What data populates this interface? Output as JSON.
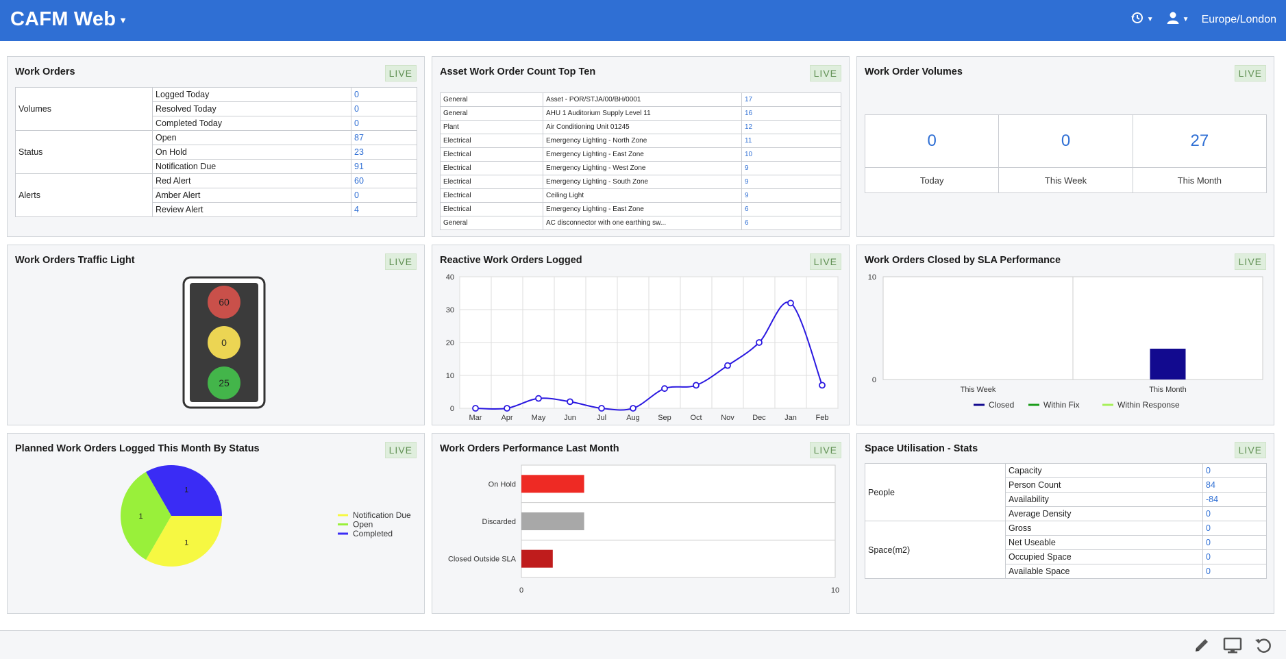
{
  "app": {
    "title": "CAFM Web",
    "timezone": "Europe/London"
  },
  "live_label": "LIVE",
  "work_orders": {
    "title": "Work Orders",
    "groups": [
      {
        "name": "Volumes",
        "rows": [
          {
            "label": "Logged Today",
            "value": "0"
          },
          {
            "label": "Resolved Today",
            "value": "0"
          },
          {
            "label": "Completed Today",
            "value": "0"
          }
        ]
      },
      {
        "name": "Status",
        "rows": [
          {
            "label": "Open",
            "value": "87"
          },
          {
            "label": "On Hold",
            "value": "23"
          },
          {
            "label": "Notification Due",
            "value": "91"
          }
        ]
      },
      {
        "name": "Alerts",
        "rows": [
          {
            "label": "Red Alert",
            "value": "60"
          },
          {
            "label": "Amber Alert",
            "value": "0"
          },
          {
            "label": "Review Alert",
            "value": "4"
          }
        ]
      }
    ]
  },
  "asset_top_ten": {
    "title": "Asset Work Order Count Top Ten",
    "rows": [
      [
        "General",
        "Asset - POR/STJA/00/BH/0001",
        "17"
      ],
      [
        "General",
        "AHU 1 Auditorium Supply Level 11",
        "16"
      ],
      [
        "Plant",
        "Air Conditioning Unit 01245",
        "12"
      ],
      [
        "Electrical",
        "Emergency Lighting - North Zone",
        "11"
      ],
      [
        "Electrical",
        "Emergency Lighting - East Zone",
        "10"
      ],
      [
        "Electrical",
        "Emergency Lighting - West Zone",
        "9"
      ],
      [
        "Electrical",
        "Emergency Lighting - South Zone",
        "9"
      ],
      [
        "Electrical",
        "Ceiling Light",
        "9"
      ],
      [
        "Electrical",
        "Emergency Lighting - East Zone",
        "6"
      ],
      [
        "General",
        "AC disconnector with one earthing sw...",
        "6"
      ]
    ]
  },
  "volumes": {
    "title": "Work Order Volumes",
    "cells": [
      {
        "value": "0",
        "label": "Today"
      },
      {
        "value": "0",
        "label": "This Week"
      },
      {
        "value": "27",
        "label": "This Month"
      }
    ]
  },
  "traffic_light": {
    "title": "Work Orders Traffic Light",
    "red": "60",
    "amber": "0",
    "green": "25",
    "colors": {
      "red": "#c9504a",
      "amber": "#ecd553",
      "green": "#43b54a"
    }
  },
  "reactive": {
    "title": "Reactive Work Orders Logged",
    "color": "#2a18e0",
    "chart_data": {
      "type": "line",
      "x": [
        "Mar",
        "Apr",
        "May",
        "Jun",
        "Jul",
        "Aug",
        "Sep",
        "Oct",
        "Nov",
        "Dec",
        "Jan",
        "Feb"
      ],
      "values": [
        0,
        0,
        3,
        2,
        0,
        0,
        6,
        7,
        13,
        20,
        32,
        7
      ],
      "ylim": [
        0,
        40
      ],
      "yticks": [
        "0",
        "10",
        "20",
        "30",
        "40"
      ],
      "grid": true
    }
  },
  "sla": {
    "title": "Work Orders Closed by SLA Performance",
    "chart_data": {
      "type": "bar",
      "categories": [
        "This Week",
        "This Month"
      ],
      "series": [
        {
          "name": "Closed",
          "values": [
            0,
            3
          ],
          "color": "#120a8f"
        },
        {
          "name": "Within Fix",
          "values": [
            0,
            0
          ],
          "color": "#1a9c1a"
        },
        {
          "name": "Within Response",
          "values": [
            0,
            0
          ],
          "color": "#a6f05a"
        }
      ],
      "ylim": [
        0,
        10
      ],
      "yticks": [
        "0",
        "10"
      ]
    }
  },
  "planned": {
    "title": "Planned Work Orders Logged This Month By Status",
    "chart_data": {
      "type": "pie",
      "slices": [
        {
          "name": "Completed",
          "value": 1,
          "label": "1",
          "color": "#3a2cf5"
        },
        {
          "name": "Notification Due",
          "value": 1,
          "label": "1",
          "color": "#f6f842"
        },
        {
          "name": "Open",
          "value": 1,
          "label": "1",
          "color": "#99f03a"
        }
      ],
      "legend": [
        "Notification Due",
        "Open",
        "Completed"
      ]
    }
  },
  "performance": {
    "title": "Work Orders Performance Last Month",
    "chart_data": {
      "type": "bar",
      "orientation": "horizontal",
      "categories": [
        "On Hold",
        "Discarded",
        "Closed Outside SLA"
      ],
      "values": [
        2,
        2,
        1
      ],
      "colors": [
        "#ee2a24",
        "#a8a8a8",
        "#bf1c1c"
      ],
      "xlim": [
        0,
        10
      ],
      "xticks": [
        "0",
        "10"
      ]
    }
  },
  "space": {
    "title": "Space Utilisation - Stats",
    "groups": [
      {
        "name": "People",
        "rows": [
          {
            "label": "Capacity",
            "value": "0"
          },
          {
            "label": "Person Count",
            "value": "84"
          },
          {
            "label": "Availability",
            "value": "-84"
          },
          {
            "label": "Average Density",
            "value": "0"
          }
        ]
      },
      {
        "name": "Space(m2)",
        "rows": [
          {
            "label": "Gross",
            "value": "0"
          },
          {
            "label": "Net Useable",
            "value": "0"
          },
          {
            "label": "Occupied Space",
            "value": "0"
          },
          {
            "label": "Available Space",
            "value": "0"
          }
        ]
      }
    ]
  }
}
